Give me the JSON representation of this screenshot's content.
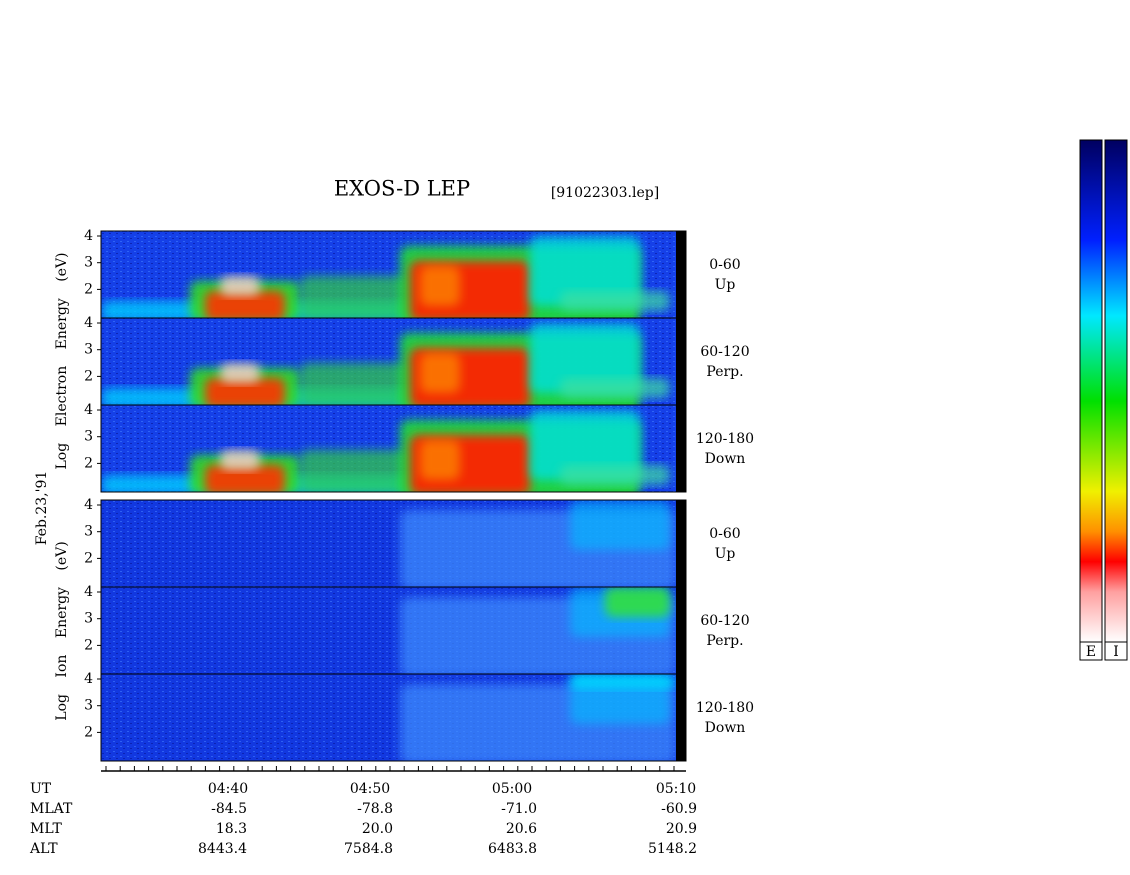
{
  "header": {
    "title": "EXOS-D LEP",
    "file": "[91022303.lep]"
  },
  "date": "Feb.23,'91",
  "electron": {
    "axis_label": "Log Electron Energy (eV)",
    "panels": [
      {
        "range": "0-60",
        "direction": "Up"
      },
      {
        "range": "60-120",
        "direction": "Perp."
      },
      {
        "range": "120-180",
        "direction": "Down"
      }
    ]
  },
  "ion": {
    "axis_label": "Log Ion Energy (eV)",
    "panels": [
      {
        "range": "0-60",
        "direction": "Up"
      },
      {
        "range": "60-120",
        "direction": "Perp."
      },
      {
        "range": "120-180",
        "direction": "Down"
      }
    ]
  },
  "yticks": [
    4,
    3,
    2
  ],
  "time_label": "UT",
  "times": [
    "04:40",
    "04:50",
    "05:00",
    "05:10"
  ],
  "orbit": [
    {
      "label": "MLAT",
      "values": [
        "-84.5",
        "-78.8",
        "-71.0",
        "-60.9"
      ]
    },
    {
      "label": "MLT",
      "values": [
        "18.3",
        "20.0",
        "20.6",
        "20.9"
      ]
    },
    {
      "label": "ALT",
      "values": [
        "8443.4",
        "7584.8",
        "6483.8",
        "5148.2"
      ]
    }
  ],
  "colorbars": [
    "E",
    "I"
  ]
}
